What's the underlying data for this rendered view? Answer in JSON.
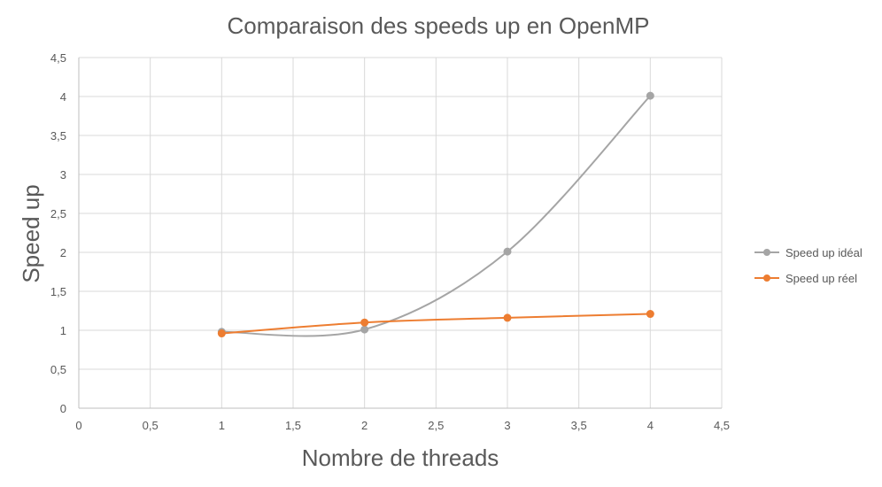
{
  "chart_data": {
    "type": "scatter",
    "title": "Comparaison des speeds up en OpenMP",
    "xlabel": "Nombre de threads",
    "ylabel": "Speed up",
    "xlim": [
      0,
      4.5
    ],
    "ylim": [
      0,
      4.5
    ],
    "x_ticks": [
      "0",
      "0,5",
      "1",
      "1,5",
      "2",
      "2,5",
      "3",
      "3,5",
      "4",
      "4,5"
    ],
    "y_ticks": [
      "0",
      "0,5",
      "1",
      "1,5",
      "2",
      "2,5",
      "3",
      "3,5",
      "4",
      "4,5"
    ],
    "grid": true,
    "legend_position": "right",
    "smoothed_lines": true,
    "series": [
      {
        "name": "Speed up idéal",
        "color": "#a5a5a5",
        "points": [
          [
            1,
            0.98
          ],
          [
            2,
            1.01
          ],
          [
            3,
            2.01
          ],
          [
            4,
            4.01
          ]
        ]
      },
      {
        "name": "Speed up réel",
        "color": "#ed7d31",
        "points": [
          [
            1,
            0.96
          ],
          [
            2,
            1.1
          ],
          [
            3,
            1.16
          ],
          [
            4,
            1.21
          ]
        ]
      }
    ]
  }
}
